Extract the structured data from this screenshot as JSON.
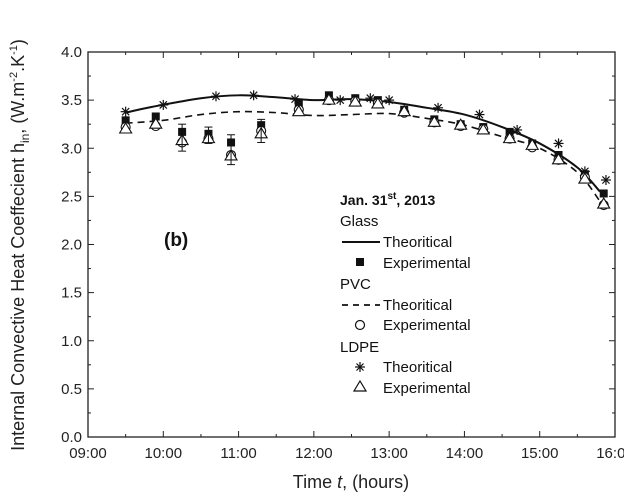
{
  "chart_data": {
    "type": "line",
    "xlabel_main": "Time ",
    "xlabel_italic": "t",
    "xlabel_rest": ", (hours)",
    "ylabel_main": "Internal Convective Heat Coeffecient h",
    "ylabel_sub": "in",
    "ylabel_units_pre": ", (W.m",
    "ylabel_sup1": "-2",
    "ylabel_units_mid": ".K",
    "ylabel_sup2": "-1",
    "ylabel_units_post": ")",
    "xlim": [
      9.0,
      16.0
    ],
    "ylim": [
      0.0,
      4.0
    ],
    "x_ticks": [
      {
        "value": 9.0,
        "label": "09:00"
      },
      {
        "value": 10.0,
        "label": "10:00"
      },
      {
        "value": 11.0,
        "label": "11:00"
      },
      {
        "value": 12.0,
        "label": "12:00"
      },
      {
        "value": 13.0,
        "label": "13:00"
      },
      {
        "value": 14.0,
        "label": "14:00"
      },
      {
        "value": 15.0,
        "label": "15:00"
      },
      {
        "value": 16.0,
        "label": "16:00"
      }
    ],
    "y_ticks": [
      {
        "value": 0.0,
        "label": "0.0"
      },
      {
        "value": 0.5,
        "label": "0.5"
      },
      {
        "value": 1.0,
        "label": "1.0"
      },
      {
        "value": 1.5,
        "label": "1.5"
      },
      {
        "value": 2.0,
        "label": "2.0"
      },
      {
        "value": 2.5,
        "label": "2.5"
      },
      {
        "value": 3.0,
        "label": "3.0"
      },
      {
        "value": 3.5,
        "label": "3.5"
      },
      {
        "value": 4.0,
        "label": "4.0"
      }
    ],
    "panel_label": "(b)",
    "legend": {
      "date_main": "Jan. 31",
      "date_sup": "st",
      "date_rest": ", 2013",
      "groups": [
        {
          "name": "Glass",
          "entries": [
            {
              "label": "Theoritical",
              "marker": "line-solid"
            },
            {
              "label": "Experimental",
              "marker": "filled-square"
            }
          ]
        },
        {
          "name": "PVC",
          "entries": [
            {
              "label": "Theoritical",
              "marker": "line-dashed"
            },
            {
              "label": "Experimental",
              "marker": "open-circle"
            }
          ]
        },
        {
          "name": "LDPE",
          "entries": [
            {
              "label": "Theoritical",
              "marker": "star"
            },
            {
              "label": "Experimental",
              "marker": "open-triangle"
            }
          ]
        }
      ]
    },
    "series": [
      {
        "style": "line-solid",
        "x": [
          9.5,
          9.85,
          10.5,
          11.0,
          11.5,
          12.0,
          12.5,
          13.0,
          13.5,
          14.0,
          14.5,
          15.0,
          15.5,
          15.8
        ],
        "y": [
          3.37,
          3.43,
          3.52,
          3.55,
          3.53,
          3.5,
          3.51,
          3.48,
          3.42,
          3.35,
          3.22,
          3.05,
          2.8,
          2.55
        ]
      },
      {
        "style": "filled-square",
        "x": [
          9.5,
          9.9,
          10.25,
          10.6,
          10.9,
          11.3,
          11.8,
          12.2,
          12.55,
          12.85,
          13.2,
          13.6,
          13.95,
          14.25,
          14.6,
          14.9,
          15.25,
          15.6,
          15.85
        ],
        "y": [
          3.29,
          3.33,
          3.17,
          3.15,
          3.06,
          3.24,
          3.47,
          3.55,
          3.52,
          3.5,
          3.4,
          3.3,
          3.25,
          3.22,
          3.17,
          3.05,
          2.93,
          2.73,
          2.53
        ]
      },
      {
        "style": "line-dashed",
        "x": [
          9.5,
          10.0,
          10.5,
          11.0,
          11.5,
          12.0,
          12.5,
          13.0,
          13.5,
          14.0,
          14.5,
          15.0,
          15.5,
          15.8
        ],
        "y": [
          3.26,
          3.29,
          3.35,
          3.38,
          3.37,
          3.34,
          3.35,
          3.36,
          3.31,
          3.24,
          3.12,
          3.0,
          2.75,
          2.45
        ]
      },
      {
        "style": "open-circle",
        "x": [
          9.5,
          9.9,
          10.25,
          10.6,
          10.9,
          11.3,
          11.8,
          12.2,
          12.55,
          12.85,
          13.2,
          13.6,
          13.95,
          14.25,
          14.6,
          14.9,
          15.25,
          15.6,
          15.85
        ],
        "y": [
          3.22,
          3.23,
          3.06,
          3.1,
          2.93,
          3.18,
          3.4,
          3.5,
          3.49,
          3.47,
          3.37,
          3.27,
          3.23,
          3.2,
          3.1,
          3.01,
          2.88,
          2.7,
          2.41
        ]
      },
      {
        "style": "star",
        "x": [
          9.5,
          10.0,
          10.7,
          11.2,
          11.75,
          12.35,
          12.75,
          13.0,
          13.65,
          14.2,
          14.7,
          15.25,
          15.6,
          15.88
        ],
        "y": [
          3.38,
          3.45,
          3.54,
          3.55,
          3.51,
          3.5,
          3.52,
          3.5,
          3.42,
          3.35,
          3.19,
          3.05,
          2.76,
          2.67
        ]
      },
      {
        "style": "open-triangle",
        "x": [
          9.5,
          9.9,
          10.25,
          10.6,
          10.9,
          11.3,
          11.8,
          12.2,
          12.55,
          12.85,
          13.2,
          13.6,
          13.95,
          14.25,
          14.6,
          14.9,
          15.25,
          15.6,
          15.85
        ],
        "y": [
          3.2,
          3.25,
          3.08,
          3.1,
          2.92,
          3.15,
          3.38,
          3.5,
          3.48,
          3.46,
          3.38,
          3.27,
          3.24,
          3.19,
          3.1,
          3.03,
          2.88,
          2.68,
          2.42
        ]
      }
    ],
    "error_bars": {
      "x": [
        10.25,
        10.6,
        10.9,
        11.3
      ],
      "low": [
        2.97,
        3.05,
        2.83,
        3.06
      ],
      "high": [
        3.25,
        3.22,
        3.14,
        3.3
      ]
    }
  }
}
